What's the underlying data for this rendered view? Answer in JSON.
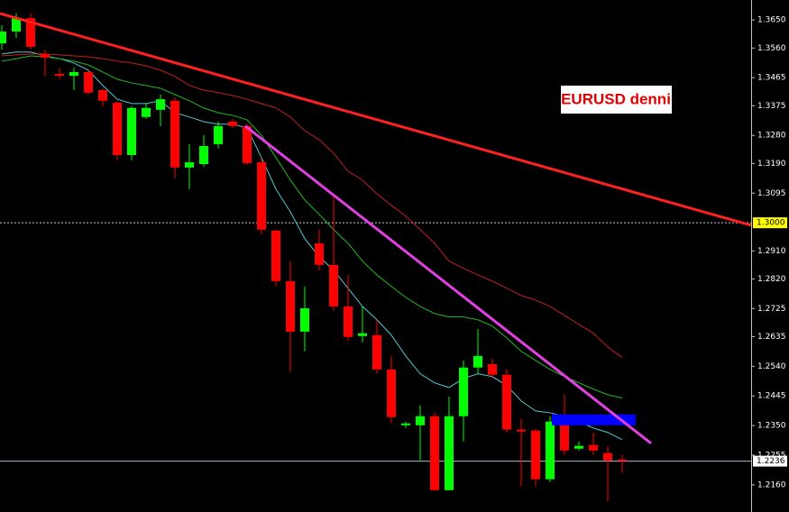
{
  "chart_data": {
    "type": "candlestick",
    "title": "EURUSD denni",
    "ylim": [
      1.2073,
      1.3714
    ],
    "xlim": [
      -0.125,
      51.9375
    ],
    "yticks": [
      {
        "value": 1.365,
        "label": "1.3650"
      },
      {
        "value": 1.356,
        "label": "1.3560"
      },
      1.3465,
      {
        "value": 1.3375,
        "label": "1.3375"
      },
      {
        "value": 1.328,
        "label": "1.3280"
      },
      {
        "value": 1.319,
        "label": "1.3190"
      },
      1.3095,
      {
        "value": 1.291,
        "label": "1.2910"
      },
      {
        "value": 1.282,
        "label": "1.2820"
      },
      1.2725,
      1.2635,
      {
        "value": 1.254,
        "label": "1.2540"
      },
      1.2445,
      {
        "value": 1.235,
        "label": "1.2350"
      },
      1.2255,
      {
        "value": 1.216,
        "label": "1.2160"
      }
    ],
    "up_color": "#00ff00",
    "down_color": "#ff0000",
    "open": [
      1.3575,
      1.3613,
      1.3656,
      1.3541,
      1.3477,
      1.3471,
      1.3483,
      1.3425,
      1.3385,
      1.3217,
      1.3339,
      1.3362,
      1.3391,
      1.3177,
      1.3188,
      1.3252,
      1.3324,
      1.331,
      1.3194,
      1.2975,
      1.2813,
      1.2651,
      1.2934,
      1.2865,
      1.2732,
      1.2637,
      1.264,
      1.253,
      1.2351,
      1.2351,
      1.238,
      1.2143,
      1.238,
      1.2536,
      1.2547,
      1.2513,
      1.2337,
      1.2334,
      1.2178,
      1.2365,
      1.2276,
      1.2288,
      1.2262,
      1.2241
    ],
    "high": [
      1.3633,
      1.3671,
      1.3671,
      1.3555,
      1.3497,
      1.3497,
      1.3489,
      1.3431,
      1.3391,
      1.3373,
      1.3382,
      1.3411,
      1.3402,
      1.3252,
      1.3281,
      1.3324,
      1.3333,
      1.3316,
      1.3209,
      1.2978,
      1.2877,
      1.2796,
      1.2978,
      1.3093,
      1.2833,
      1.2732,
      1.2689,
      1.2573,
      1.2363,
      1.2415,
      1.2391,
      1.2443,
      1.2559,
      1.266,
      1.2565,
      1.253,
      1.2371,
      1.234,
      1.238,
      1.2449,
      1.2299,
      1.2328,
      1.2285,
      1.2256
    ],
    "low": [
      1.3555,
      1.3593,
      1.3555,
      1.3469,
      1.346,
      1.3425,
      1.3411,
      1.3373,
      1.32,
      1.32,
      1.3333,
      1.331,
      1.3142,
      1.3108,
      1.318,
      1.3238,
      1.3304,
      1.3186,
      1.2963,
      1.2796,
      1.2521,
      1.2588,
      1.2848,
      1.2718,
      1.2622,
      1.2617,
      1.2516,
      1.2357,
      1.2342,
      1.2238,
      1.2143,
      1.2143,
      1.2299,
      1.2516,
      1.2501,
      1.2328,
      1.2155,
      1.2155,
      1.2169,
      1.2256,
      1.227,
      1.2256,
      1.2108,
      1.2198
    ],
    "close": [
      1.3613,
      1.3656,
      1.3564,
      1.3529,
      1.3471,
      1.3483,
      1.3417,
      1.3391,
      1.3217,
      1.3368,
      1.3368,
      1.3396,
      1.3177,
      1.3194,
      1.3246,
      1.331,
      1.331,
      1.3191,
      1.2978,
      1.2813,
      1.2651,
      1.2726,
      1.2865,
      1.2732,
      1.2634,
      1.2646,
      1.253,
      1.2377,
      1.2357,
      1.238,
      1.2143,
      1.238,
      1.2536,
      1.2573,
      1.2513,
      1.2337,
      1.2331,
      1.2178,
      1.2363,
      1.227,
      1.2285,
      1.227,
      1.2238,
      1.2236
    ],
    "lines": [
      {
        "color": "#4fc8d8",
        "values": [
          1.3541,
          1.3547,
          1.3547,
          1.3535,
          1.3526,
          1.3512,
          1.3489,
          1.344,
          1.3396,
          1.3382,
          1.3382,
          1.3391,
          1.3353,
          1.3339,
          1.3324,
          1.3316,
          1.3316,
          1.3304,
          1.3209,
          1.3108,
          1.3035,
          1.2949,
          1.2891,
          1.2848,
          1.279,
          1.2732,
          1.2689,
          1.264,
          1.2573,
          1.2516,
          1.2487,
          1.2472,
          1.2501,
          1.2516,
          1.2507,
          1.2478,
          1.2429,
          1.2397,
          1.2391,
          1.238,
          1.2363,
          1.2342,
          1.2328,
          1.2305
        ]
      },
      {
        "color": "#22b822",
        "values": [
          1.3518,
          1.3526,
          1.3535,
          1.3532,
          1.3526,
          1.3518,
          1.3506,
          1.3483,
          1.346,
          1.3448,
          1.344,
          1.3431,
          1.3411,
          1.3391,
          1.3368,
          1.3353,
          1.3344,
          1.333,
          1.3281,
          1.3209,
          1.3137,
          1.3073,
          1.3027,
          1.2978,
          1.2934,
          1.2877,
          1.2833,
          1.2796,
          1.2761,
          1.2732,
          1.2709,
          1.2698,
          1.2698,
          1.2689,
          1.2669,
          1.2631,
          1.2588,
          1.2559,
          1.253,
          1.2507,
          1.2487,
          1.2467,
          1.2449,
          1.2438
        ]
      },
      {
        "color": "#c02020",
        "values": [
          1.3535,
          1.3538,
          1.3541,
          1.3541,
          1.3538,
          1.3535,
          1.3532,
          1.3526,
          1.3518,
          1.3512,
          1.3503,
          1.3489,
          1.3469,
          1.344,
          1.3425,
          1.3417,
          1.3408,
          1.3396,
          1.3382,
          1.3368,
          1.3339,
          1.3295,
          1.3266,
          1.3223,
          1.3165,
          1.3137,
          1.3093,
          1.3056,
          1.3021,
          1.2978,
          1.2934,
          1.2877,
          1.2854,
          1.2833,
          1.2813,
          1.279,
          1.2767,
          1.2752,
          1.2732,
          1.2703,
          1.2674,
          1.2646,
          1.2602,
          1.2568
        ]
      }
    ],
    "trendlines": [
      {
        "x": [
          -0.125,
          51.9375
        ],
        "y": [
          1.3671,
          1.2992
        ],
        "color": "#ff2020"
      },
      {
        "x": [
          16.875,
          45
        ],
        "y": [
          1.331,
          1.2293
        ],
        "color": "#e040e0"
      }
    ],
    "zone": {
      "x": [
        38.125,
        43.9375
      ],
      "y": [
        1.2351,
        1.2386
      ],
      "color": "#0000ff"
    },
    "hlines": [
      {
        "value": 1.3,
        "label": "1.3000",
        "color": "#ffff00",
        "dashed": true
      },
      {
        "value": 1.2236,
        "label": "1.2236",
        "color": "#ffffff",
        "dashed": false
      }
    ]
  }
}
